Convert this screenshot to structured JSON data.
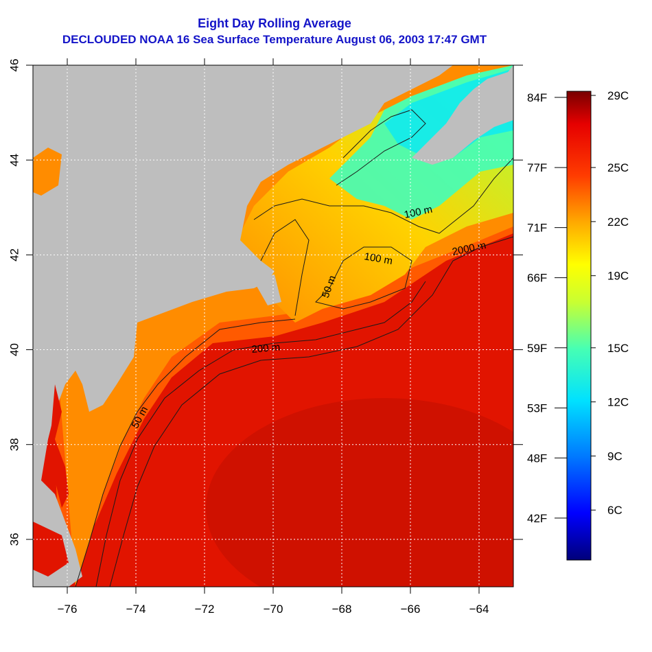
{
  "title_line1": "Eight Day Rolling Average",
  "title_line2": "DECLOUDED NOAA 16 Sea Surface Temperature August 06, 2003 17:47 GMT",
  "map": {
    "lon_range": [
      -77,
      -63
    ],
    "lat_range": [
      35,
      46
    ],
    "lon_ticks": [
      -76,
      -74,
      -72,
      -70,
      -68,
      -66,
      -64
    ],
    "lat_ticks": [
      36,
      38,
      40,
      42,
      44,
      46
    ],
    "lon_tick_labels": [
      "−76",
      "−74",
      "−72",
      "−70",
      "−68",
      "−66",
      "−64"
    ],
    "lat_tick_labels": [
      "36",
      "38",
      "40",
      "42",
      "44",
      "46"
    ],
    "grid": "dotted white, 2-degree spacing",
    "land_color": "#bebebe",
    "contour_color": "#1a1a1a",
    "contour_labels": [
      {
        "text": "100 m",
        "lon": -65.2,
        "lat": 42.8
      },
      {
        "text": "2000 m",
        "lon": -64.0,
        "lat": 42.2
      },
      {
        "text": "100 m",
        "lon": -67.2,
        "lat": 41.9
      },
      {
        "text": "50 m",
        "lon": -68.2,
        "lat": 41.2
      },
      {
        "text": "200 m",
        "lon": -70.3,
        "lat": 40.0
      },
      {
        "text": "50 m",
        "lon": -73.6,
        "lat": 38.3
      }
    ]
  },
  "colorbar": {
    "celsius_labels": [
      "29C",
      "25C",
      "22C",
      "19C",
      "15C",
      "12C",
      "9C",
      "6C"
    ],
    "celsius_values": [
      29,
      25,
      22,
      19,
      15,
      12,
      9,
      6
    ],
    "fahrenheit_labels": [
      "84F",
      "77F",
      "71F",
      "66F",
      "59F",
      "53F",
      "48F",
      "42F"
    ],
    "fahrenheit_values": [
      84,
      77,
      71,
      66,
      59,
      53,
      48,
      42
    ],
    "range_c": [
      3,
      29
    ],
    "colors": [
      "#00007a",
      "#0000ff",
      "#0078ff",
      "#00e1ff",
      "#46ffb4",
      "#c8ff32",
      "#ffff00",
      "#ffaa00",
      "#ff3c00",
      "#e60000",
      "#780000"
    ]
  }
}
